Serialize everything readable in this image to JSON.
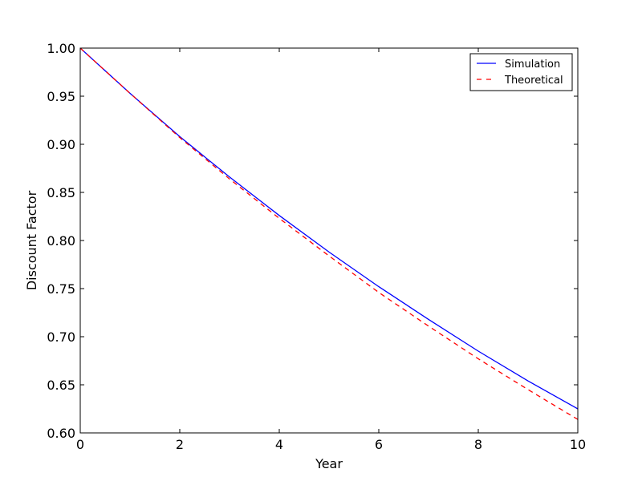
{
  "chart_data": {
    "type": "line",
    "title": "",
    "xlabel": "Year",
    "ylabel": "Discount Factor",
    "xlim": [
      0,
      10
    ],
    "ylim": [
      0.6,
      1.0
    ],
    "x_ticks": [
      0,
      2,
      4,
      6,
      8,
      10
    ],
    "y_ticks": [
      0.6,
      0.65,
      0.7,
      0.75,
      0.8,
      0.85,
      0.9,
      0.95,
      1.0
    ],
    "x_tick_labels": [
      "0",
      "2",
      "4",
      "6",
      "8",
      "10"
    ],
    "y_tick_labels": [
      "0.60",
      "0.65",
      "0.70",
      "0.75",
      "0.80",
      "0.85",
      "0.90",
      "0.95",
      "1.00"
    ],
    "grid": false,
    "legend_position": "top-right",
    "x": [
      0,
      1,
      2,
      3,
      4,
      5,
      6,
      7,
      8,
      9,
      10
    ],
    "series": [
      {
        "name": "Simulation",
        "color": "#0000ff",
        "style": "solid",
        "values": [
          1.0,
          0.953,
          0.908,
          0.866,
          0.826,
          0.788,
          0.752,
          0.718,
          0.685,
          0.654,
          0.625
        ]
      },
      {
        "name": "Theoretical",
        "color": "#ff0000",
        "style": "dashed",
        "values": [
          1.0,
          0.953,
          0.907,
          0.864,
          0.823,
          0.784,
          0.746,
          0.711,
          0.677,
          0.645,
          0.614
        ]
      }
    ]
  }
}
